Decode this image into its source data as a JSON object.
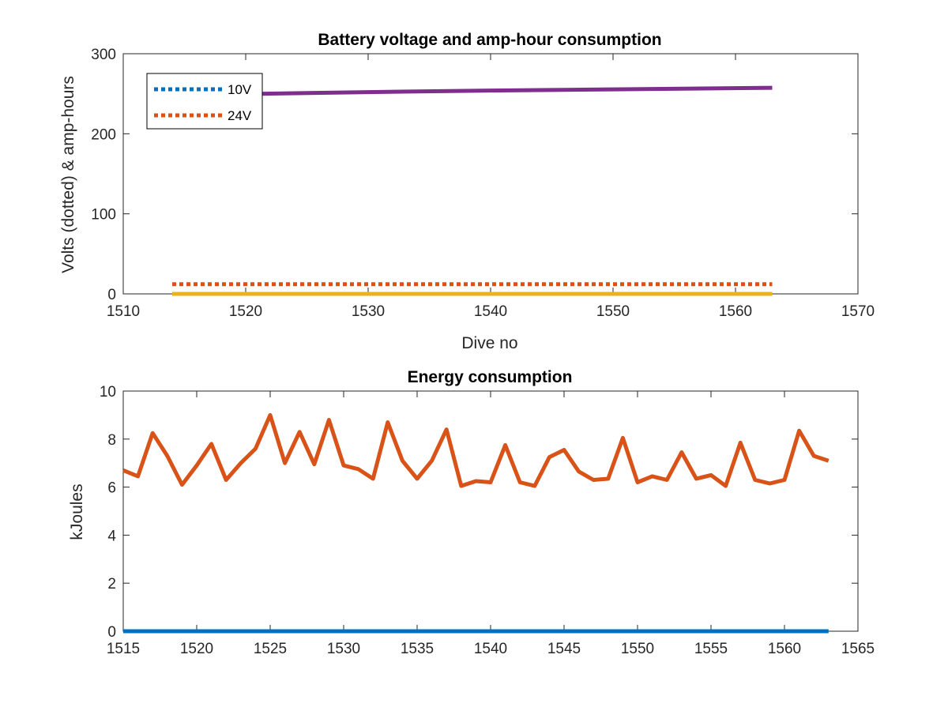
{
  "chart_data": [
    {
      "type": "line",
      "title": "Battery voltage and amp-hour consumption",
      "xlabel": "Dive no",
      "ylabel": "Volts (dotted) & amp-hours",
      "xlim": [
        1510,
        1570
      ],
      "ylim": [
        0,
        300
      ],
      "xticks": [
        1510,
        1520,
        1530,
        1540,
        1550,
        1560,
        1570
      ],
      "yticks": [
        0,
        100,
        200,
        300
      ],
      "grid": false,
      "legend_position": "top-left",
      "series": [
        {
          "name": "10V",
          "style": "dotted",
          "color": "#0072BD",
          "x": [
            1514,
            1563
          ],
          "y": [
            0,
            0
          ]
        },
        {
          "name": "24V",
          "style": "dotted",
          "color": "#D95319",
          "x": [
            1514,
            1563
          ],
          "y": [
            12,
            12
          ]
        },
        {
          "style": "solid",
          "color": "#EDB120",
          "x": [
            1514,
            1563
          ],
          "y": [
            0,
            0
          ]
        },
        {
          "style": "solid",
          "color": "#7E2F8E",
          "x": [
            1521,
            1530,
            1540,
            1550,
            1563
          ],
          "y": [
            250,
            252,
            254,
            255.5,
            257.5
          ]
        }
      ]
    },
    {
      "type": "line",
      "title": "Energy consumption",
      "xlabel": "",
      "ylabel": "kJoules",
      "xlim": [
        1515,
        1565
      ],
      "ylim": [
        0,
        10
      ],
      "xticks": [
        1515,
        1520,
        1525,
        1530,
        1535,
        1540,
        1545,
        1550,
        1555,
        1560,
        1565
      ],
      "yticks": [
        0,
        2,
        4,
        6,
        8,
        10
      ],
      "grid": false,
      "series": [
        {
          "style": "solid",
          "color": "#0072BD",
          "x": [
            1515,
            1563
          ],
          "y": [
            0,
            0
          ]
        },
        {
          "style": "solid",
          "color": "#D95319",
          "x": [
            1515,
            1516,
            1517,
            1518,
            1519,
            1520,
            1521,
            1522,
            1523,
            1524,
            1525,
            1526,
            1527,
            1528,
            1529,
            1530,
            1531,
            1532,
            1533,
            1534,
            1535,
            1536,
            1537,
            1538,
            1539,
            1540,
            1541,
            1542,
            1543,
            1544,
            1545,
            1546,
            1547,
            1548,
            1549,
            1550,
            1551,
            1552,
            1553,
            1554,
            1555,
            1556,
            1557,
            1558,
            1559,
            1560,
            1561,
            1562,
            1563
          ],
          "y": [
            6.7,
            6.45,
            8.25,
            7.3,
            6.1,
            6.9,
            7.8,
            6.3,
            7.0,
            7.6,
            9.0,
            7.0,
            8.3,
            6.95,
            8.8,
            6.9,
            6.75,
            6.35,
            8.7,
            7.1,
            6.35,
            7.1,
            8.4,
            6.05,
            6.25,
            6.2,
            7.75,
            6.2,
            6.05,
            7.25,
            7.55,
            6.65,
            6.3,
            6.35,
            8.05,
            6.2,
            6.45,
            6.3,
            7.45,
            6.35,
            6.5,
            6.05,
            7.85,
            6.3,
            6.15,
            6.3,
            8.35,
            7.3,
            7.1
          ]
        }
      ]
    }
  ]
}
